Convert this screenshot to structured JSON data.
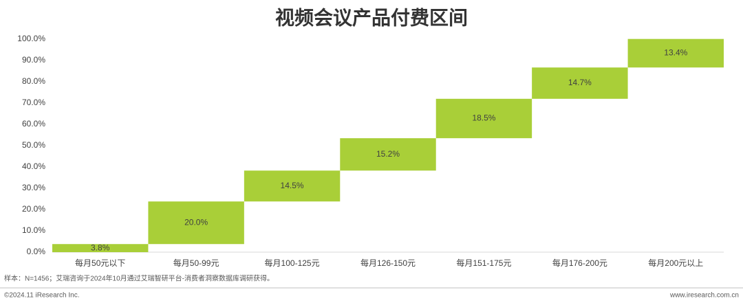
{
  "chart_data": {
    "type": "waterfall",
    "title": "视频会议产品付费区间",
    "categories": [
      "每月50元以下",
      "每月50-99元",
      "每月100-125元",
      "每月126-150元",
      "每月151-175元",
      "每月176-200元",
      "每月200元以上"
    ],
    "values": [
      3.8,
      20.0,
      14.5,
      15.2,
      18.5,
      14.7,
      13.4
    ],
    "value_labels": [
      "3.8%",
      "20.0%",
      "14.5%",
      "15.2%",
      "18.5%",
      "14.7%",
      "13.4%"
    ],
    "color": "#a9cf38",
    "ylim": [
      0,
      100
    ],
    "yticks": [
      {
        "value": 0,
        "label": "0.0%"
      },
      {
        "value": 10,
        "label": "10.0%"
      },
      {
        "value": 20,
        "label": "20.0%"
      },
      {
        "value": 30,
        "label": "30.0%"
      },
      {
        "value": 40,
        "label": "40.0%"
      },
      {
        "value": 50,
        "label": "50.0%"
      },
      {
        "value": 60,
        "label": "60.0%"
      },
      {
        "value": 70,
        "label": "70.0%"
      },
      {
        "value": 80,
        "label": "80.0%"
      },
      {
        "value": 90,
        "label": "90.0%"
      },
      {
        "value": 100,
        "label": "100.0%"
      }
    ],
    "grid": false,
    "note": "样本：N=1456；艾瑞咨询于2024年10月通过艾瑞智研平台-消费者洞察数据库调研获得。",
    "copyright": "©2024.11 iResearch Inc.",
    "website": "www.iresearch.com.cn"
  }
}
